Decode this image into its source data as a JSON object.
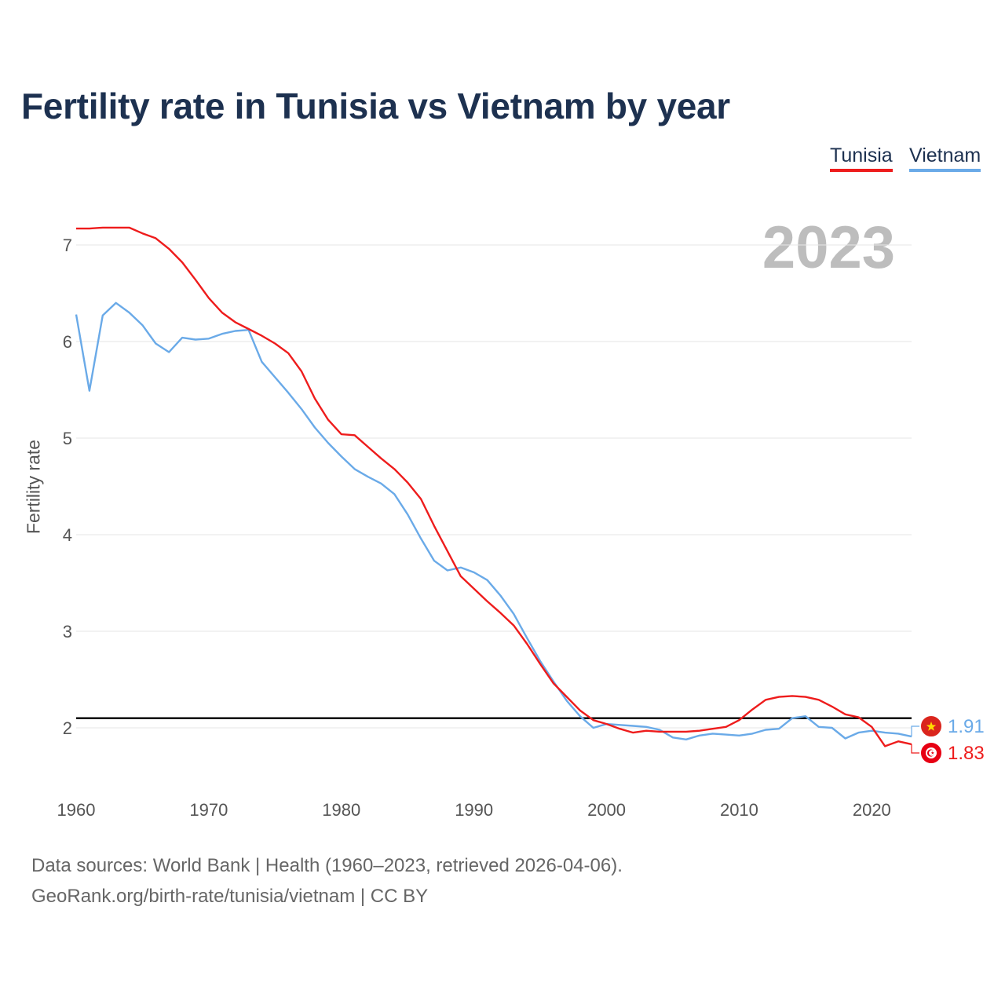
{
  "title": "Fertility rate in Tunisia vs Vietnam by year",
  "legend": {
    "tunisia": "Tunisia",
    "vietnam": "Vietnam"
  },
  "year_display": "2023",
  "footer": {
    "source": "Data sources: World Bank | Health (1960–2023, retrieved 2026-04-06).",
    "credit": "GeoRank.org/birth-rate/tunisia/vietnam | CC BY"
  },
  "colors": {
    "tunisia": "#ee1c1c",
    "vietnam": "#6aaae8",
    "reference": "#000000",
    "title": "#1d3150"
  },
  "icons": {
    "vietnam_flag": "vietnam-flag-icon",
    "tunisia_flag": "tunisia-flag-icon"
  },
  "chart_data": {
    "type": "line",
    "title": "Fertility rate in Tunisia vs Vietnam by year",
    "xlabel": "",
    "ylabel": "Fertility rate",
    "xlim": [
      1960,
      2023
    ],
    "ylim": [
      1.4,
      7.5
    ],
    "x_ticks": [
      1960,
      1970,
      1980,
      1990,
      2000,
      2010,
      2020
    ],
    "y_ticks": [
      2,
      3,
      4,
      5,
      6,
      7
    ],
    "grid": true,
    "reference_line": 2.1,
    "legend_position": "top-right",
    "x": [
      1960,
      1961,
      1962,
      1963,
      1964,
      1965,
      1966,
      1967,
      1968,
      1969,
      1970,
      1971,
      1972,
      1973,
      1974,
      1975,
      1976,
      1977,
      1978,
      1979,
      1980,
      1981,
      1982,
      1983,
      1984,
      1985,
      1986,
      1987,
      1988,
      1989,
      1990,
      1991,
      1992,
      1993,
      1994,
      1995,
      1996,
      1997,
      1998,
      1999,
      2000,
      2001,
      2002,
      2003,
      2004,
      2005,
      2006,
      2007,
      2008,
      2009,
      2010,
      2011,
      2012,
      2013,
      2014,
      2015,
      2016,
      2017,
      2018,
      2019,
      2020,
      2021,
      2022,
      2023
    ],
    "series": [
      {
        "name": "Tunisia",
        "values": [
          7.17,
          7.17,
          7.18,
          7.18,
          7.18,
          7.12,
          7.07,
          6.96,
          6.82,
          6.64,
          6.45,
          6.3,
          6.2,
          6.13,
          6.06,
          5.98,
          5.88,
          5.69,
          5.41,
          5.19,
          5.04,
          5.03,
          4.91,
          4.79,
          4.68,
          4.54,
          4.37,
          4.09,
          3.83,
          3.57,
          3.44,
          3.31,
          3.19,
          3.06,
          2.87,
          2.66,
          2.46,
          2.32,
          2.18,
          2.08,
          2.04,
          1.99,
          1.95,
          1.97,
          1.96,
          1.96,
          1.96,
          1.97,
          1.99,
          2.01,
          2.08,
          2.19,
          2.29,
          2.32,
          2.33,
          2.32,
          2.29,
          2.22,
          2.14,
          2.11,
          2.01,
          1.81,
          1.86,
          1.83
        ],
        "end_label": "1.83"
      },
      {
        "name": "Vietnam",
        "values": [
          6.28,
          5.49,
          6.27,
          6.4,
          6.3,
          6.17,
          5.98,
          5.89,
          6.04,
          6.02,
          6.03,
          6.08,
          6.11,
          6.12,
          5.79,
          5.63,
          5.47,
          5.3,
          5.11,
          4.95,
          4.81,
          4.68,
          4.6,
          4.53,
          4.42,
          4.21,
          3.96,
          3.73,
          3.63,
          3.66,
          3.61,
          3.53,
          3.37,
          3.18,
          2.93,
          2.69,
          2.48,
          2.28,
          2.12,
          2.0,
          2.04,
          2.03,
          2.02,
          2.01,
          1.98,
          1.9,
          1.88,
          1.92,
          1.94,
          1.93,
          1.92,
          1.94,
          1.98,
          1.99,
          2.1,
          2.12,
          2.01,
          2.0,
          1.89,
          1.95,
          1.97,
          1.95,
          1.94,
          1.91
        ],
        "end_label": "1.91"
      }
    ]
  }
}
